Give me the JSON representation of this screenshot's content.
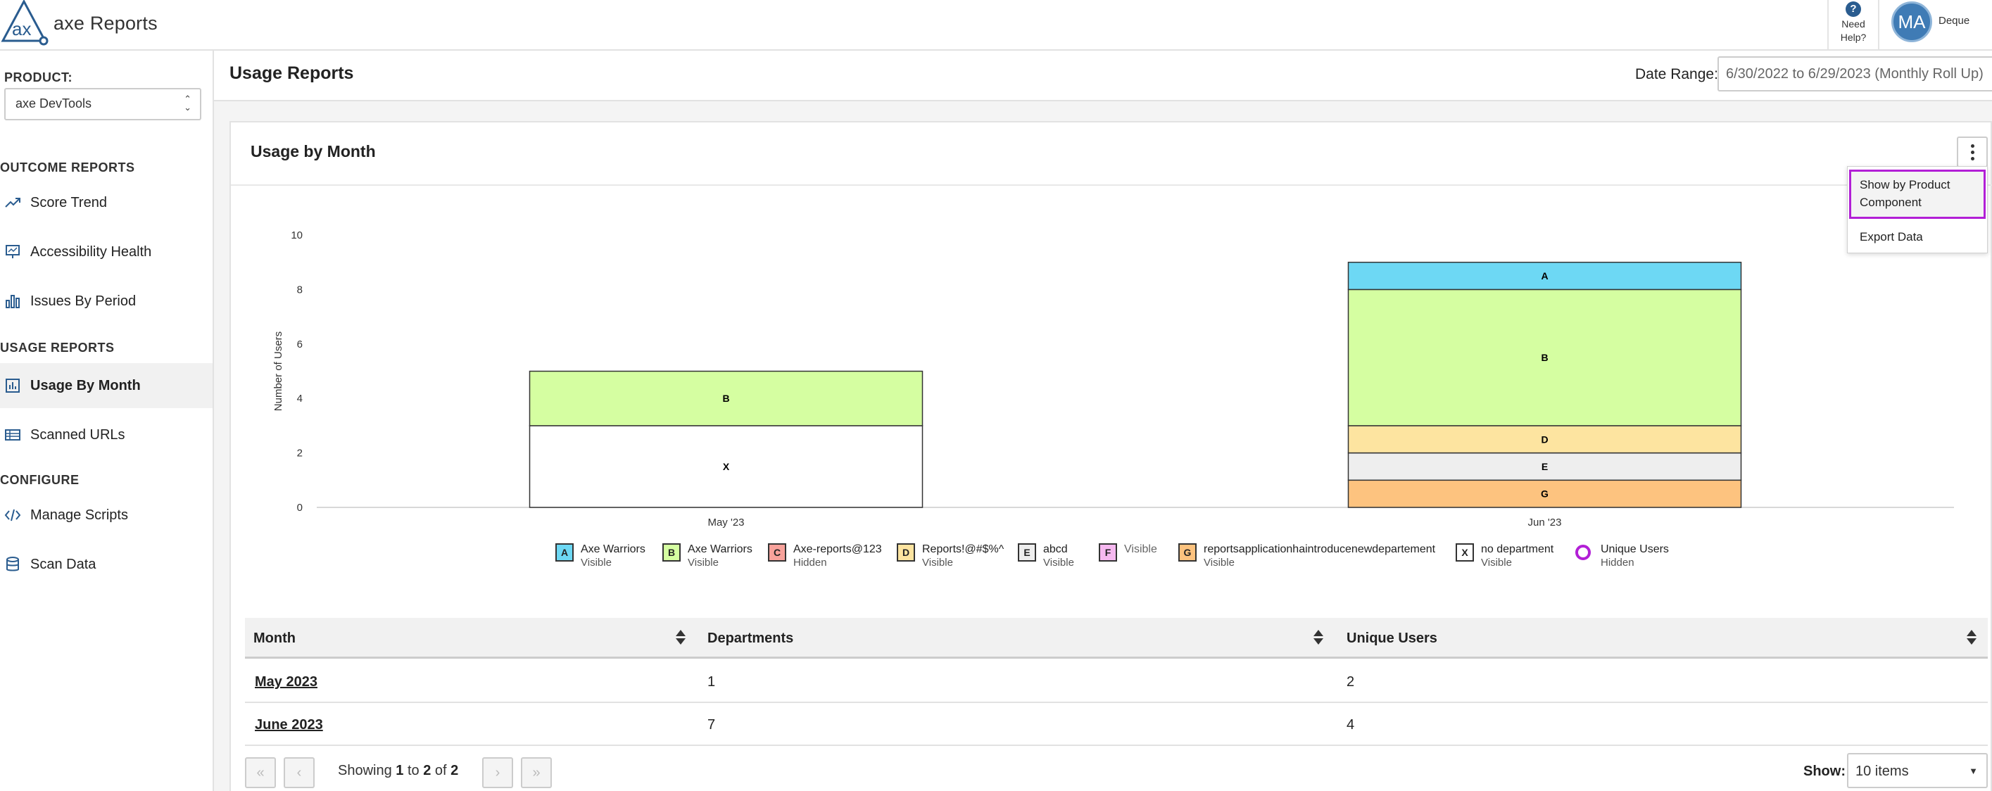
{
  "app": {
    "title": "axe Reports"
  },
  "header": {
    "help_label_1": "Need",
    "help_label_2": "Help?",
    "help_icon": "?",
    "user_initials": "MA",
    "user_name": "Deque"
  },
  "sidebar": {
    "product_label": "PRODUCT:",
    "product_value": "axe DevTools",
    "sections": {
      "outcome": "OUTCOME REPORTS",
      "usage": "USAGE REPORTS",
      "configure": "CONFIGURE"
    },
    "items": [
      {
        "label": "Score Trend",
        "icon": "trend-icon"
      },
      {
        "label": "Accessibility Health",
        "icon": "presentation-icon"
      },
      {
        "label": "Issues By Period",
        "icon": "bar-chart-icon"
      },
      {
        "label": "Usage By Month",
        "icon": "report-icon",
        "active": true
      },
      {
        "label": "Scanned URLs",
        "icon": "table-icon"
      },
      {
        "label": "Manage Scripts",
        "icon": "code-icon"
      },
      {
        "label": "Scan Data",
        "icon": "database-icon"
      }
    ]
  },
  "main": {
    "page_title": "Usage Reports",
    "date_range_label": "Date Range:",
    "date_range_value": "6/30/2022 to 6/29/2023 (Monthly Roll Up)",
    "card_title": "Usage by Month",
    "menu": {
      "item1_line1": "Show by Product",
      "item1_line2": "Component",
      "item2": "Export Data"
    }
  },
  "chart_data": {
    "type": "bar",
    "stacked": true,
    "title": "",
    "xlabel": "",
    "ylabel": "Number of Users",
    "ylim": [
      0,
      10
    ],
    "yticks": [
      "0",
      "2",
      "4",
      "6",
      "8",
      "10"
    ],
    "categories": [
      "May '23",
      "Jun '23"
    ],
    "series": [
      {
        "letter": "G",
        "values": [
          0,
          1
        ],
        "color": "#fdc37f"
      },
      {
        "letter": "E",
        "values": [
          0,
          1
        ],
        "color": "#eeeeee"
      },
      {
        "letter": "D",
        "values": [
          0,
          1
        ],
        "color": "#fde4a0"
      },
      {
        "letter": "X",
        "values": [
          3,
          0
        ],
        "color": "#ffffff"
      },
      {
        "letter": "B",
        "values": [
          2,
          5
        ],
        "color": "#d5fea1"
      },
      {
        "letter": "A",
        "values": [
          0,
          1
        ],
        "color": "#6dd8f4"
      }
    ]
  },
  "legend": [
    {
      "letter": "A",
      "name": "Axe Warriors",
      "status": "Visible",
      "color": "#6dd8f4"
    },
    {
      "letter": "B",
      "name": "Axe Warriors",
      "status": "Visible",
      "color": "#d5fea1"
    },
    {
      "letter": "C",
      "name": "Axe-reports@123",
      "status": "Hidden",
      "color": "#f8a29b"
    },
    {
      "letter": "D",
      "name": "Reports!@#$%^",
      "status": "Visible",
      "color": "#fde4a0"
    },
    {
      "letter": "E",
      "name": "abcd",
      "status": "Visible",
      "color": "#eeeeee"
    },
    {
      "letter": "F",
      "name": "Visible",
      "status": "",
      "color": "#f6b8f0"
    },
    {
      "letter": "G",
      "name": "reportsapplicationhaintroducenewdepartement",
      "status": "Visible",
      "color": "#fdc37f"
    },
    {
      "letter": "X",
      "name": "no department",
      "status": "Visible",
      "color": "#ffffff"
    },
    {
      "letter": "",
      "name": "Unique Users",
      "status": "Hidden",
      "color": "#b21fd6"
    }
  ],
  "table": {
    "headers": [
      "Month",
      "Departments",
      "Unique Users"
    ],
    "rows": [
      [
        "May 2023",
        "1",
        "2"
      ],
      [
        "June 2023",
        "7",
        "4"
      ]
    ]
  },
  "pagination": {
    "showing_prefix": "Showing",
    "from": "1",
    "to_word": "to",
    "to": "2",
    "of_word": "of",
    "total": "2",
    "show_label": "Show:",
    "show_value": "10 items"
  },
  "colors": {
    "accent": "#2a5c8f",
    "highlight": "#b21fd6"
  }
}
